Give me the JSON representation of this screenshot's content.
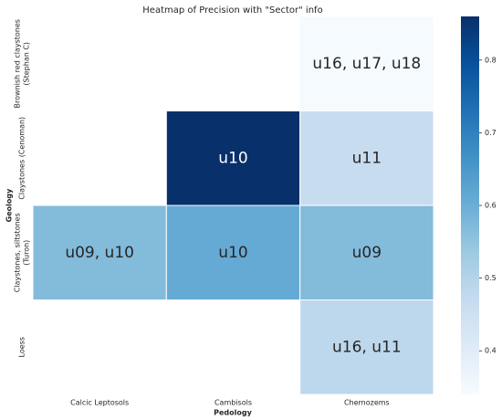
{
  "chart_data": {
    "type": "heatmap",
    "title": "Heatmap of Precision with \"Sector\" info",
    "xlabel": "Pedology",
    "ylabel": "Geology",
    "categories": [
      "Calcic Leptosols",
      "Cambisols",
      "Chernozems"
    ],
    "rows": [
      [
        "Brownish red claystones",
        "(Stephan C)"
      ],
      [
        "Claystones (Cenoman)"
      ],
      [
        "Claystones, siltstones",
        "(Turon)"
      ],
      [
        "Loess"
      ]
    ],
    "values": [
      [
        null,
        null,
        0.345
      ],
      [
        null,
        0.86,
        0.465
      ],
      [
        0.57,
        0.61,
        0.57
      ],
      [
        null,
        null,
        0.485
      ]
    ],
    "value_labels": [
      [
        null,
        null,
        "u16, u17, u18"
      ],
      [
        null,
        "u10",
        "u11"
      ],
      [
        "u09, u10",
        "u10",
        "u09"
      ],
      [
        null,
        null,
        "u16, u11"
      ]
    ],
    "colormap": "Blues",
    "clim": [
      0.34,
      0.86
    ],
    "cticks": [
      0.4,
      0.5,
      0.6,
      0.7,
      0.8
    ]
  }
}
